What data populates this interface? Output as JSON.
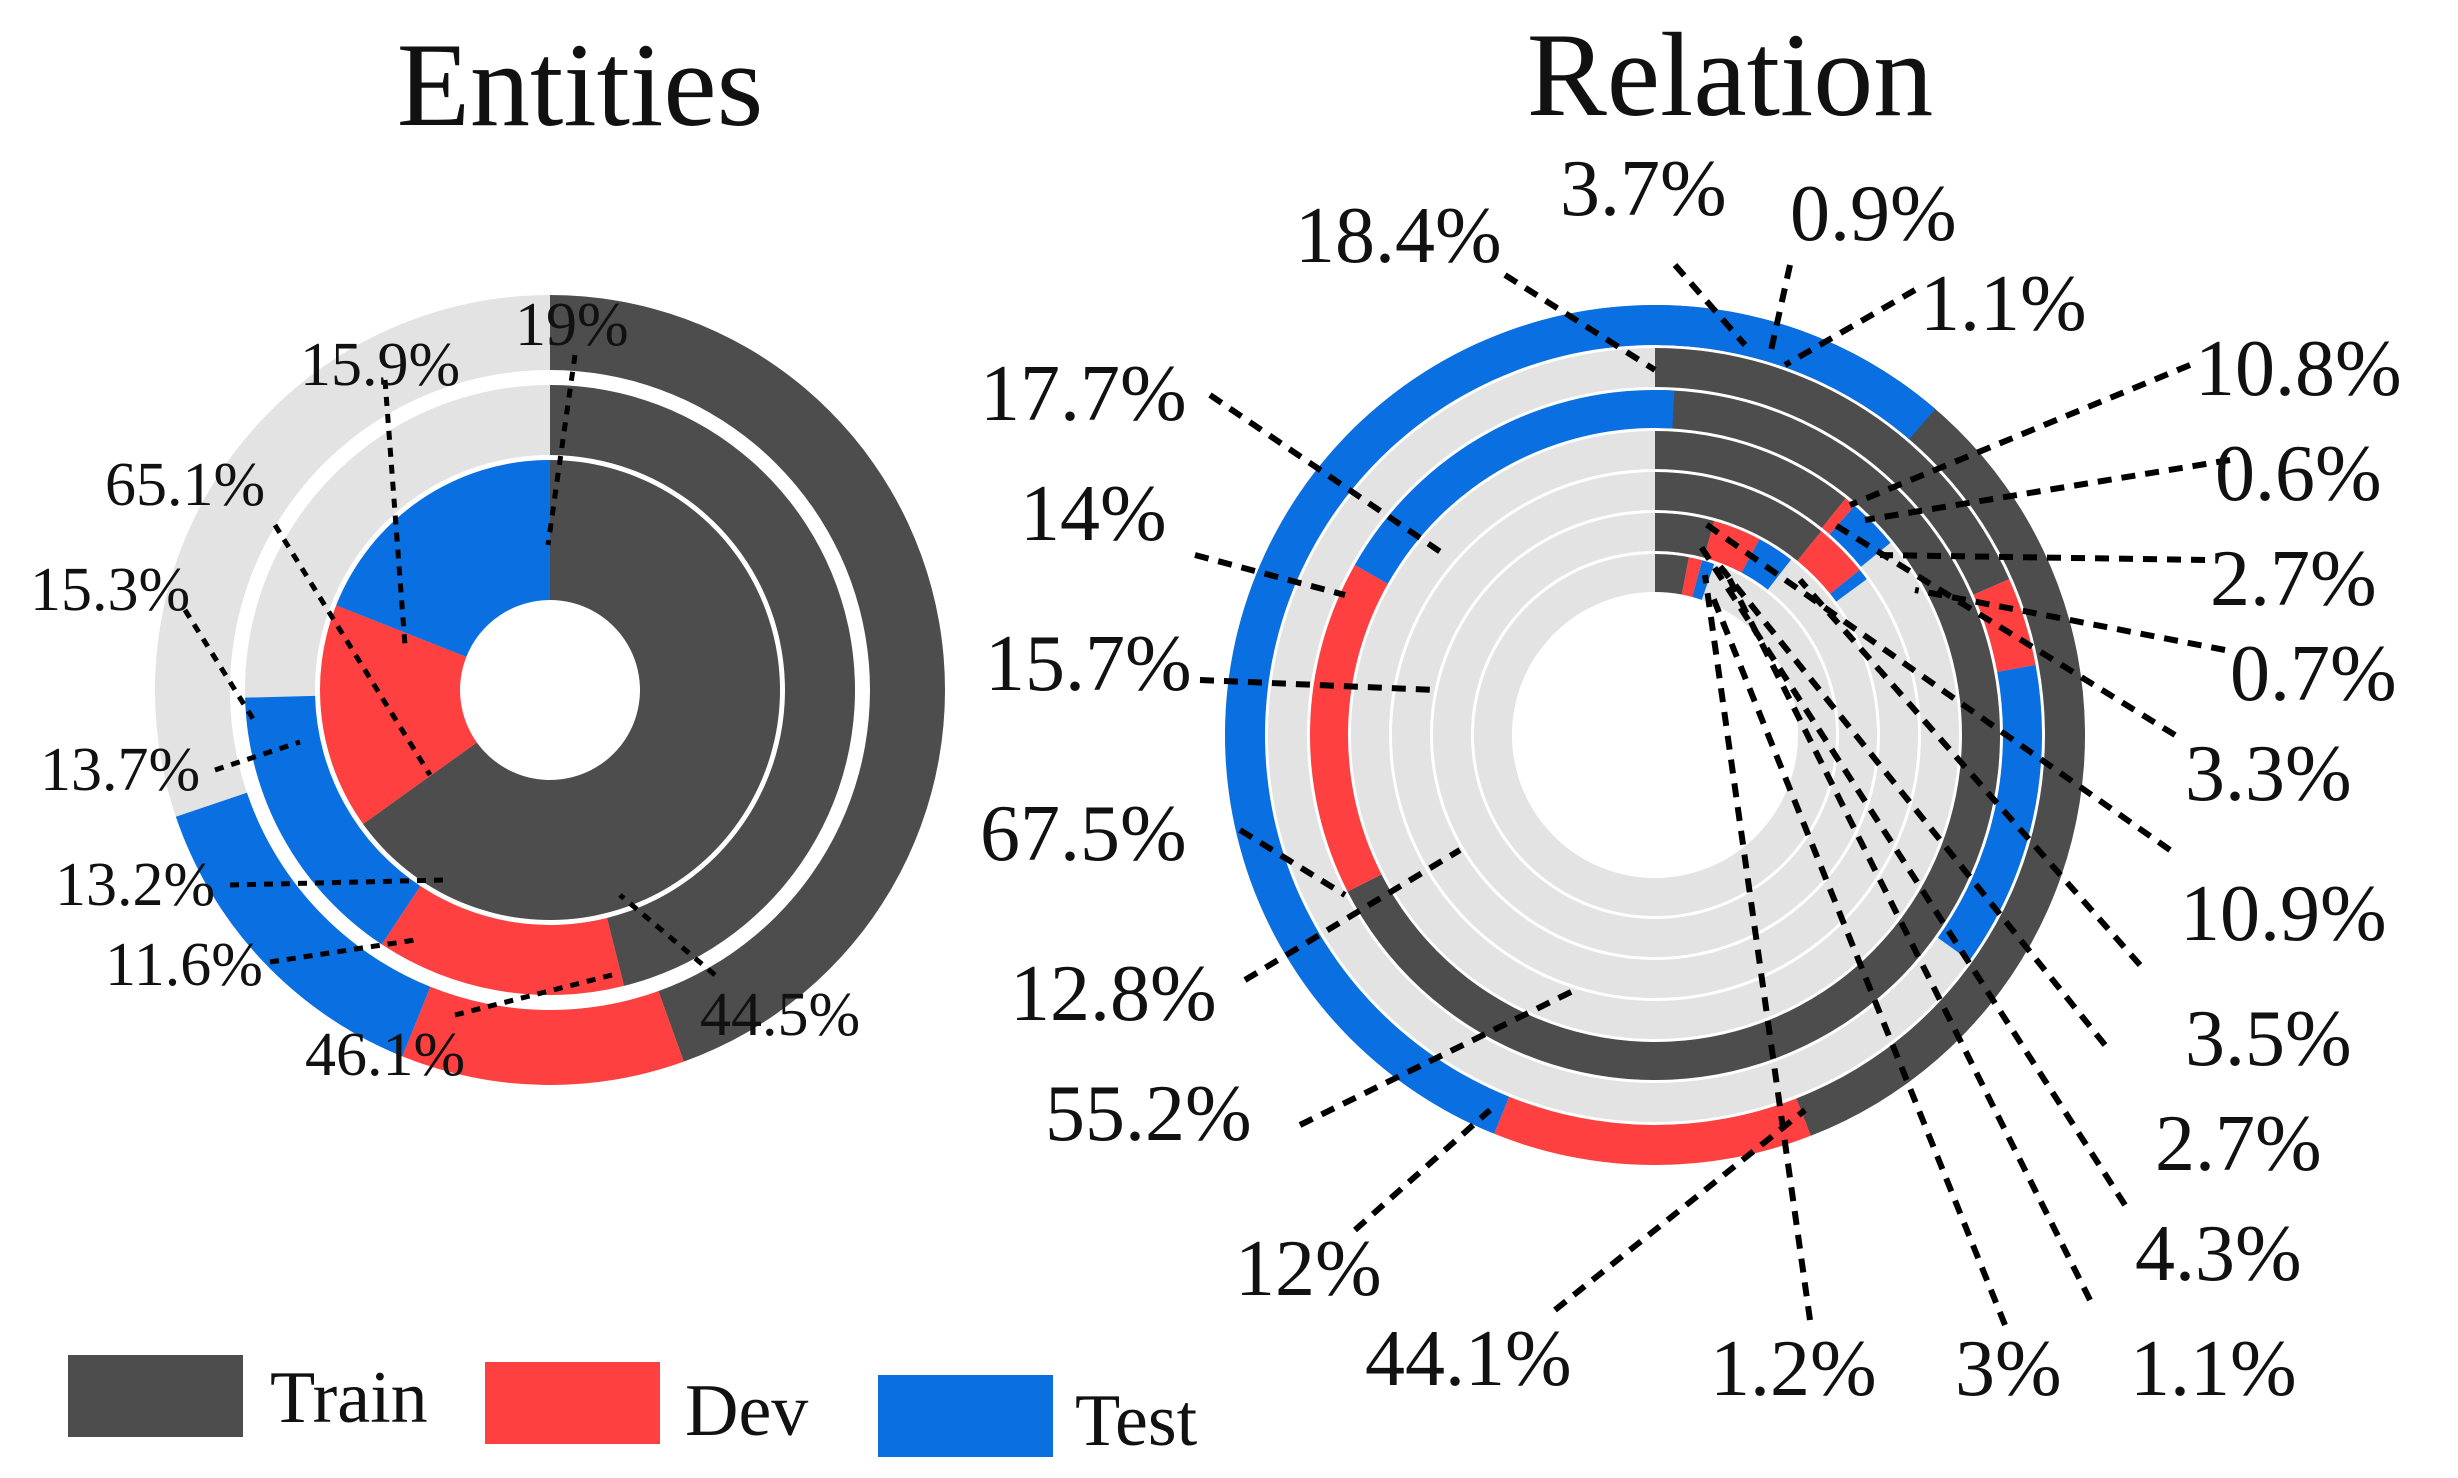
{
  "legend": [
    {
      "label": "Train",
      "color": "#4d4d4d"
    },
    {
      "label": "Dev",
      "color": "#ff4040"
    },
    {
      "label": "Test",
      "color": "#0a6fe0"
    }
  ],
  "colors": {
    "track": "#e3e3e3",
    "train": "#4d4d4d",
    "dev": "#ff4040",
    "test": "#0a6fe0"
  },
  "chart_data": [
    {
      "type": "pie",
      "subtype": "concentric-donut",
      "title": "Entities",
      "series_order": [
        "Train",
        "Dev",
        "Test"
      ],
      "rings": [
        {
          "name": "outer",
          "values": {
            "Train": 44.5,
            "Dev": 11.6,
            "Test": 13.7
          }
        },
        {
          "name": "middle",
          "values": {
            "Train": 46.1,
            "Dev": 13.2,
            "Test": 15.3
          }
        },
        {
          "name": "inner",
          "values": {
            "Train": 65.1,
            "Dev": 15.9,
            "Test": 19
          }
        }
      ],
      "labels": [
        "19%",
        "15.9%",
        "65.1%",
        "15.3%",
        "13.7%",
        "13.2%",
        "11.6%",
        "46.1%",
        "44.5%"
      ]
    },
    {
      "type": "pie",
      "subtype": "concentric-donut",
      "title": "Relation",
      "series_order": [
        "Train",
        "Dev",
        "Test"
      ],
      "rings": [
        {
          "name": "ring-1-outer",
          "values": {
            "Train": 44.1,
            "Dev": 12,
            "Test": 55.2
          }
        },
        {
          "name": "ring-2",
          "values": {
            "Train": 18.4,
            "Dev": 3.7,
            "Test": 12.8
          }
        },
        {
          "name": "ring-3",
          "values": {
            "Train": 67.5,
            "Dev": 15.7,
            "Test": 17.7
          }
        },
        {
          "name": "ring-4",
          "values": {
            "Train": 10.8,
            "Dev": 0.6,
            "Test": 2.7
          }
        },
        {
          "name": "ring-5",
          "values": {
            "Train": 10.9,
            "Dev": 3.3,
            "Test": 0.7
          }
        },
        {
          "name": "ring-6",
          "values": {
            "Train": 4.3,
            "Dev": 3.5,
            "Test": 2.7
          }
        },
        {
          "name": "ring-7-inner",
          "values": {
            "Train": 3,
            "Dev": 1.2,
            "Test": 1.1
          }
        }
      ],
      "labels": [
        "18.4%",
        "3.7%",
        "0.9%",
        "1.1%",
        "10.8%",
        "0.6%",
        "2.7%",
        "0.7%",
        "3.3%",
        "10.9%",
        "3.5%",
        "2.7%",
        "4.3%",
        "1.1%",
        "3%",
        "1.2%",
        "44.1%",
        "12%",
        "55.2%",
        "12.8%",
        "67.5%",
        "15.7%",
        "14%",
        "17.7%"
      ]
    }
  ]
}
